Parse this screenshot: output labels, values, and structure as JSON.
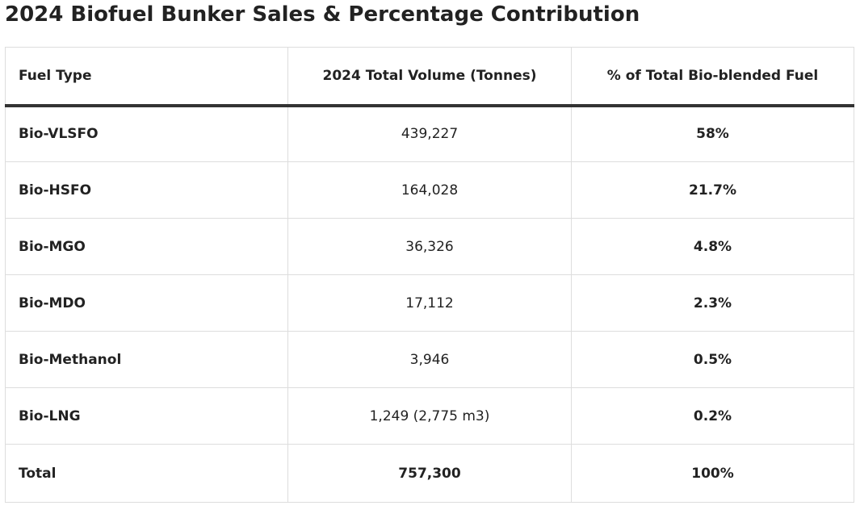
{
  "title": "2024 Biofuel Bunker Sales & Percentage Contribution",
  "table": {
    "headers": [
      "Fuel Type",
      "2024 Total Volume (Tonnes)",
      "% of Total Bio-blended Fuel"
    ],
    "rows": [
      {
        "fuel": "Bio-VLSFO",
        "volume": "439,227",
        "percent": "58%"
      },
      {
        "fuel": "Bio-HSFO",
        "volume": "164,028",
        "percent": "21.7%"
      },
      {
        "fuel": "Bio-MGO",
        "volume": "36,326",
        "percent": "4.8%"
      },
      {
        "fuel": "Bio-MDO",
        "volume": "17,112",
        "percent": "2.3%"
      },
      {
        "fuel": "Bio-Methanol",
        "volume": "3,946",
        "percent": "0.5%"
      },
      {
        "fuel": "Bio-LNG",
        "volume": "1,249 (2,775 m3)",
        "percent": "0.2%"
      }
    ],
    "total": {
      "fuel": "Total",
      "volume": "757,300",
      "percent": "100%"
    }
  }
}
